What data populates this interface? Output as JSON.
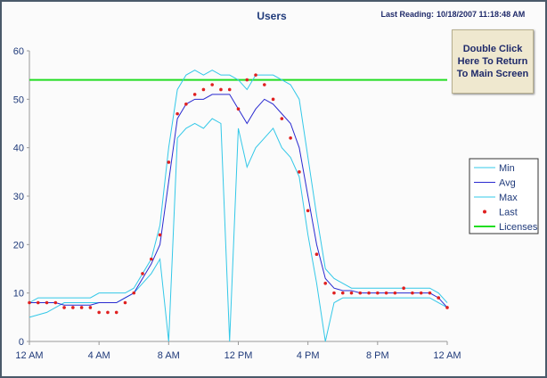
{
  "chart_data": {
    "type": "line",
    "title": "Users",
    "last_reading_label": "Last Reading:",
    "last_reading_value": "10/18/2007 11:18:48 AM",
    "button": "Double Click Here To Return To Main Screen",
    "x": [
      0,
      0.5,
      1,
      1.5,
      2,
      2.5,
      3,
      3.5,
      4,
      4.5,
      5,
      5.5,
      6,
      6.5,
      7,
      7.5,
      8,
      8.5,
      9,
      9.5,
      10,
      10.5,
      11,
      11.5,
      12,
      12.5,
      13,
      13.5,
      14,
      14.5,
      15,
      15.5,
      16,
      16.5,
      17,
      17.5,
      18,
      18.5,
      19,
      19.5,
      20,
      20.5,
      21,
      21.5,
      22,
      22.5,
      23,
      23.5,
      24
    ],
    "xlim": [
      0,
      24
    ],
    "xticks": [
      {
        "value": 0,
        "label": "12 AM"
      },
      {
        "value": 4,
        "label": "4 AM"
      },
      {
        "value": 8,
        "label": "8 AM"
      },
      {
        "value": 12,
        "label": "12 PM"
      },
      {
        "value": 16,
        "label": "4 PM"
      },
      {
        "value": 20,
        "label": "8 PM"
      },
      {
        "value": 24,
        "label": "12 AM"
      }
    ],
    "ylim": [
      0,
      60
    ],
    "yticks": [
      0,
      10,
      20,
      30,
      40,
      50,
      60
    ],
    "series": [
      {
        "name": "Min",
        "color": "#33c8e8",
        "style": "line",
        "values": [
          5,
          5.5,
          6,
          7,
          8,
          8,
          8,
          8,
          8,
          8,
          8,
          9,
          10,
          12,
          14,
          17,
          0,
          42,
          44,
          45,
          44,
          46,
          45,
          0,
          44,
          36,
          40,
          42,
          44,
          40,
          38,
          34,
          22,
          12,
          0,
          8,
          9,
          9,
          9,
          9,
          9,
          9,
          9,
          9,
          9,
          9,
          9,
          8,
          7
        ]
      },
      {
        "name": "Avg",
        "color": "#2a2ad0",
        "style": "line",
        "values": [
          8,
          8,
          8,
          8,
          7.5,
          7.5,
          7.5,
          7.5,
          8,
          8,
          8,
          9,
          10,
          13,
          16,
          20,
          33,
          46,
          49,
          50,
          50,
          51,
          51,
          51,
          48,
          45,
          48,
          50,
          49,
          47,
          45,
          40,
          30,
          20,
          13,
          11,
          10.5,
          10.5,
          10,
          10,
          10,
          10,
          10,
          10,
          10,
          10,
          10,
          9,
          7
        ]
      },
      {
        "name": "Max",
        "color": "#33c8e8",
        "style": "line",
        "values": [
          8,
          9,
          9,
          9,
          9,
          9,
          9,
          9,
          10,
          10,
          10,
          10,
          11,
          14,
          17,
          24,
          40,
          52,
          55,
          56,
          55,
          56,
          55,
          55,
          54,
          52,
          55,
          55,
          55,
          54,
          53,
          50,
          38,
          26,
          15,
          13,
          12,
          11,
          11,
          11,
          11,
          11,
          11,
          11,
          11,
          11,
          11,
          10,
          8
        ]
      },
      {
        "name": "Last",
        "color": "#e02020",
        "style": "dots",
        "values": [
          8,
          8,
          8,
          8,
          7,
          7,
          7,
          7,
          6,
          6,
          6,
          8,
          10,
          14,
          17,
          22,
          37,
          47,
          49,
          51,
          52,
          53,
          52,
          52,
          48,
          54,
          55,
          53,
          50,
          46,
          42,
          35,
          27,
          18,
          12,
          10,
          10,
          10,
          10,
          10,
          10,
          10,
          10,
          11,
          10,
          10,
          10,
          9,
          7
        ]
      }
    ],
    "reference_line": {
      "name": "Licenses",
      "value": 54,
      "color": "#22dd22"
    }
  }
}
